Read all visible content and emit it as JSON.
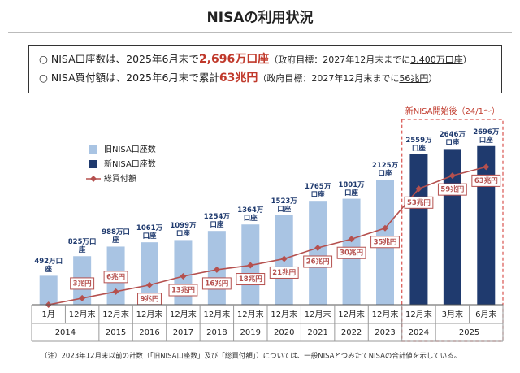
{
  "summary": [
    {
      "lead": "○ NISA口座数は、2025年6月末で",
      "highlight": "2,696万口座",
      "note_pre": "（政府目標：2027年12月末までに",
      "note_target": "3,400万口座",
      "note_post": "）"
    },
    {
      "lead": "○ NISA買付額は、2025年6月末で累計",
      "highlight": "63兆円",
      "note_pre": "（政府目標：2027年12月末までに",
      "note_target": "56兆円",
      "note_post": "）"
    }
  ],
  "chart_data": {
    "type": "bar-line",
    "title": "NISAの利用状況",
    "categories": [
      "1月",
      "12月末",
      "12月末",
      "12月末",
      "12月末",
      "12月末",
      "12月末",
      "12月末",
      "12月末",
      "12月末",
      "12月末",
      "12月末",
      "3月末",
      "6月末"
    ],
    "category_groups": [
      "2014",
      "2014",
      "2015",
      "2016",
      "2017",
      "2018",
      "2019",
      "2020",
      "2021",
      "2022",
      "2023",
      "2024",
      "2025",
      "2025"
    ],
    "series": [
      {
        "name": "旧NISA口座数",
        "color": "#a9c4e3",
        "values": [
          492,
          825,
          988,
          1061,
          1099,
          1254,
          1364,
          1523,
          1765,
          1801,
          2125,
          null,
          null,
          null
        ],
        "value_labels": [
          "492万口座",
          "825万口座",
          "988万口座",
          "1061万口座",
          "1099万口座",
          "1254万口座",
          "1364万口座",
          "1523万口座",
          "1765万口座",
          "1801万口座",
          "2125万口座",
          null,
          null,
          null
        ]
      },
      {
        "name": "新NISA口座数",
        "color": "#1f3a6e",
        "values": [
          null,
          null,
          null,
          null,
          null,
          null,
          null,
          null,
          null,
          null,
          null,
          2559,
          2646,
          2696
        ],
        "value_labels": [
          null,
          null,
          null,
          null,
          null,
          null,
          null,
          null,
          null,
          null,
          null,
          "2559万口座",
          "2646万口座",
          "2696万口座"
        ]
      },
      {
        "name": "総買付額",
        "color": "#b5504e",
        "type": "line",
        "axis": "y2",
        "values": [
          0,
          3,
          6,
          9,
          13,
          16,
          18,
          21,
          26,
          30,
          35,
          53,
          59,
          63
        ],
        "value_labels": [
          null,
          "3兆円",
          "6兆円",
          "9兆円",
          "13兆円",
          "16兆円",
          "18兆円",
          "21兆円",
          "26兆円",
          "30兆円",
          "35兆円",
          "53兆円",
          "59兆円",
          "63兆円"
        ]
      }
    ],
    "ylim": [
      0,
      2900
    ],
    "y2lim": [
      0,
      78
    ],
    "annotation": "新NISA開始後（24/1～）",
    "footnote": "（注）2023年12月末以前の計数（「旧NISA口座数」及び「総買付額」）については、一般NISAとつみたてNISAの合計値を示している。"
  }
}
